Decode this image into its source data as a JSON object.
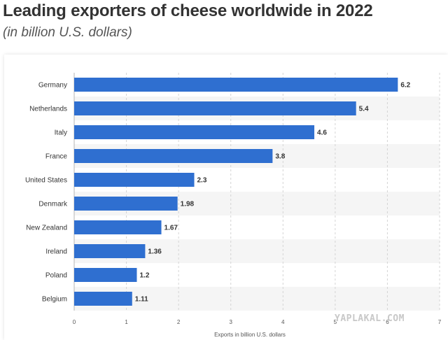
{
  "title": "Leading exporters of cheese worldwide in 2022",
  "subtitle": "(in billion U.S. dollars)",
  "watermark": "YAPLAKAL.COM",
  "colors": {
    "bar": "#2f6fd0",
    "stripe": "#f5f5f5",
    "grid": "#d4d4d4",
    "text": "#333333"
  },
  "chart_data": {
    "type": "bar",
    "orientation": "horizontal",
    "title": "Leading exporters of cheese worldwide in 2022",
    "subtitle": "(in billion U.S. dollars)",
    "xlabel": "Exports in billion U.S. dollars",
    "ylabel": "",
    "categories": [
      "Germany",
      "Netherlands",
      "Italy",
      "France",
      "United States",
      "Denmark",
      "New Zealand",
      "Ireland",
      "Poland",
      "Belgium"
    ],
    "values": [
      6.2,
      5.4,
      4.6,
      3.8,
      2.3,
      1.98,
      1.67,
      1.36,
      1.2,
      1.11
    ],
    "value_labels": [
      "6.2",
      "5.4",
      "4.6",
      "3.8",
      "2.3",
      "1.98",
      "1.67",
      "1.36",
      "1.2",
      "1.11"
    ],
    "xlim": [
      0,
      7
    ],
    "xticks": [
      0,
      1,
      2,
      3,
      4,
      5,
      6,
      7
    ],
    "grid": true,
    "legend": "none"
  }
}
